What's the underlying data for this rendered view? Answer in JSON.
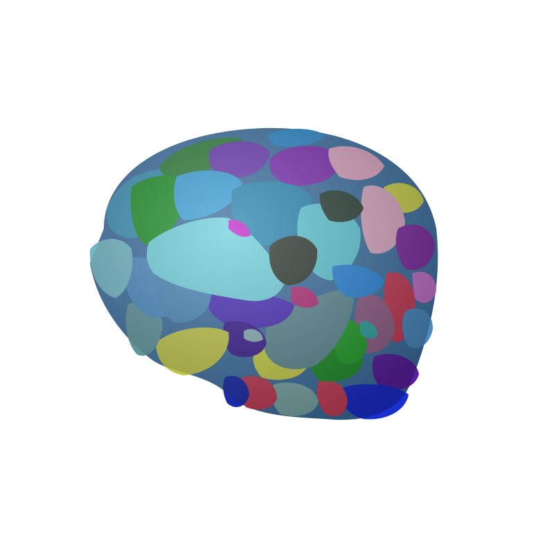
{
  "scene": {
    "background_color": "#ffffff",
    "subject": "brain-parcellation-render",
    "palette": {
      "teal": "#3a8fb5",
      "light_cyan": "#6fd0dc",
      "green": "#1f8f2a",
      "purple": "#7a2fb0",
      "violet": "#5a2fa8",
      "pink": "#d9a3c0",
      "dark_olive": "#2f3a30",
      "slate": "#5e8a92",
      "yellow_green": "#c8cf4a",
      "crimson": "#c23a55",
      "navy": "#1a2fd0",
      "steel_blue": "#4a8ac0",
      "mauve": "#8e5e86",
      "magenta": "#c028c8"
    }
  }
}
